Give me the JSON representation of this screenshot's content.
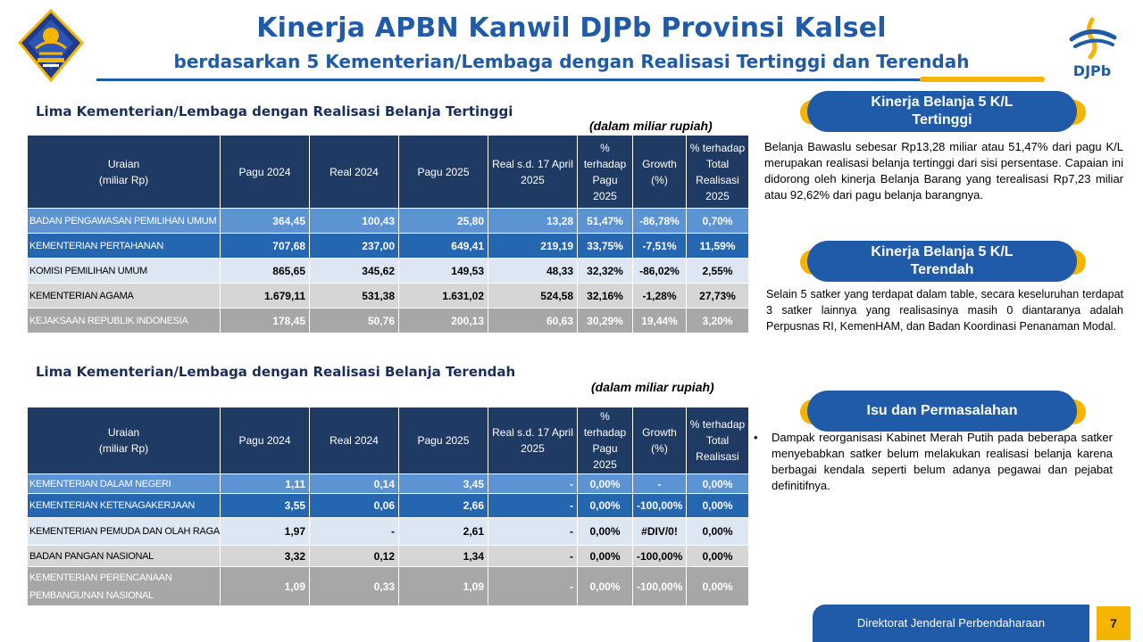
{
  "header": {
    "title": "Kinerja APBN Kanwil DJPb Provinsi Kalsel",
    "subtitle": "berdasarkan 5 Kementerian/Lembaga dengan Realisasi Tertinggi dan Terendah",
    "logo_right_text": "DJPb",
    "accent_color": "#f5b400",
    "brand_color": "#1f5ba8"
  },
  "highest": {
    "title": "Lima Kementerian/Lembaga dengan Realisasi Belanja Tertinggi",
    "unit": "(dalam miliar rupiah)",
    "headers": [
      "Uraian\n(miliar Rp)",
      "Pagu 2024",
      "Real 2024",
      "Pagu 2025",
      "Real s.d. 17 April\n2025",
      "% terhadap\nPagu 2025",
      "Growth (%)",
      "% terhadap\nTotal Realisasi\n2025"
    ],
    "rows": [
      [
        "BADAN PENGAWASAN PEMILIHAN UMUM",
        "364,45",
        "100,43",
        "25,80",
        "13,28",
        "51,47%",
        "-86,78%",
        "0,70%"
      ],
      [
        "KEMENTERIAN PERTAHANAN",
        "707,68",
        "237,00",
        "649,41",
        "219,19",
        "33,75%",
        "-7,51%",
        "11,59%"
      ],
      [
        "KOMISI PEMILIHAN UMUM",
        "865,65",
        "345,62",
        "149,53",
        "48,33",
        "32,32%",
        "-86,02%",
        "2,55%"
      ],
      [
        "KEMENTERIAN AGAMA",
        "1.679,11",
        "531,38",
        "1.631,02",
        "524,58",
        "32,16%",
        "-1,28%",
        "27,73%"
      ],
      [
        "KEJAKSAAN REPUBLIK INDONESIA",
        "178,45",
        "50,76",
        "200,13",
        "60,63",
        "30,29%",
        "19,44%",
        "3,20%"
      ]
    ]
  },
  "lowest": {
    "title": "Lima Kementerian/Lembaga dengan Realisasi Belanja Terendah",
    "unit": "(dalam miliar rupiah)",
    "headers": [
      "Uraian\n(miliar Rp)",
      "Pagu 2024",
      "Real 2024",
      "Pagu 2025",
      "Real s.d. 17 April\n2025",
      "% terhadap\nPagu 2025",
      "Growth (%)",
      "% terhadap\nTotal Realisasi"
    ],
    "rows": [
      [
        "KEMENTERIAN DALAM NEGERI",
        "1,11",
        "0,14",
        "3,45",
        "-",
        "0,00%",
        "-",
        "0,00%"
      ],
      [
        "KEMENTERIAN KETENAGAKERJAAN",
        "3,55",
        "0,06",
        "2,66",
        "-",
        "0,00%",
        "-100,00%",
        "0,00%"
      ],
      [
        "KEMENTERIAN PEMUDA DAN OLAH RAGA",
        "1,97",
        "-",
        "2,61",
        "-",
        "0,00%",
        "#DIV/0!",
        "0,00%"
      ],
      [
        "BADAN PANGAN NASIONAL",
        "3,32",
        "0,12",
        "1,34",
        "-",
        "0,00%",
        "-100,00%",
        "0,00%"
      ],
      [
        "KEMENTERIAN PERENCANAAN\nPEMBANGUNAN NASIONAL",
        "1,09",
        "0,33",
        "1,09",
        "-",
        "0,00%",
        "-100,00%",
        "0,00%"
      ]
    ]
  },
  "panels": {
    "top": {
      "label": "Kinerja Belanja 5 K/L\nTertinggi",
      "text": "Belanja Bawaslu sebesar Rp13,28 miliar atau 51,47% dari pagu K/L merupakan realisasi belanja tertinggi dari sisi persentase. Capaian ini didorong oleh kinerja Belanja Barang yang terealisasi Rp7,23 miliar atau 92,62% dari pagu belanja barangnya."
    },
    "bottom": {
      "label": "Kinerja Belanja 5 K/L\nTerendah",
      "text": "Selain 5 satker yang terdapat dalam table, secara keseluruhan terdapat 3 satker lainnya yang realisasinya masih 0 diantaranya adalah Perpusnas RI, KemenHAM, dan Badan Koordinasi Penanaman Modal."
    },
    "issues": {
      "label": "Isu dan Permasalahan",
      "bullet": "•",
      "text": "Dampak reorganisasi Kabinet Merah Putih pada beberapa satker menyebabkan satker belum melakukan realisasi belanja karena berbagai kendala seperti belum adanya pegawai dan pejabat definitifnya."
    }
  },
  "footer": {
    "org": "Direktorat Jenderal Perbendaharaan",
    "page": "7"
  }
}
